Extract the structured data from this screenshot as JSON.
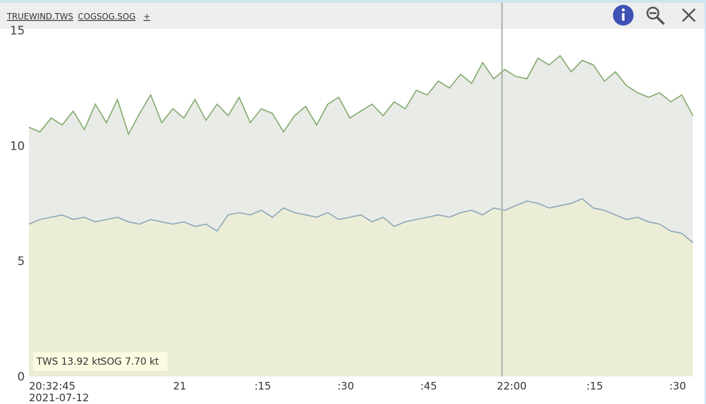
{
  "tabs": [
    "TRUEWIND.TWS",
    "COGSOG.SOG",
    "+"
  ],
  "readout": [
    "TWS 13.92 kt",
    "SOG 7.70 kt"
  ],
  "chart_data": {
    "type": "area",
    "x": [
      "20:32:45",
      "20:34:45",
      "20:36:45",
      "20:38:45",
      "20:40:45",
      "20:42:45",
      "20:44:45",
      "20:46:45",
      "20:48:45",
      "20:50:45",
      "20:52:45",
      "20:54:45",
      "20:56:45",
      "20:58:45",
      "21:00:45",
      "21:02:45",
      "21:04:45",
      "21:06:45",
      "21:08:45",
      "21:10:45",
      "21:12:45",
      "21:14:45",
      "21:16:45",
      "21:18:45",
      "21:20:45",
      "21:22:45",
      "21:24:45",
      "21:26:45",
      "21:28:45",
      "21:30:45",
      "21:32:45",
      "21:34:45",
      "21:36:45",
      "21:38:45",
      "21:40:45",
      "21:42:45",
      "21:44:45",
      "21:46:45",
      "21:48:45",
      "21:50:45",
      "21:52:45",
      "21:54:45",
      "21:56:45",
      "21:58:45",
      "22:00:45",
      "22:02:45",
      "22:04:45",
      "22:06:45",
      "22:08:45",
      "22:10:45",
      "22:12:45",
      "22:14:45",
      "22:16:45",
      "22:18:45",
      "22:20:45",
      "22:22:45",
      "22:24:45",
      "22:26:45",
      "22:28:45",
      "22:30:45",
      "22:32:45"
    ],
    "series": [
      {
        "name": "TRUEWIND.TWS",
        "color": "#7fa86a",
        "fill": "#e9ebe7",
        "values": [
          10.8,
          10.6,
          11.2,
          10.9,
          11.5,
          10.7,
          11.8,
          11.0,
          12.0,
          10.5,
          11.4,
          12.2,
          11.0,
          11.6,
          11.2,
          12.0,
          11.1,
          11.8,
          11.3,
          12.1,
          11.0,
          11.6,
          11.4,
          10.6,
          11.3,
          11.7,
          10.9,
          11.8,
          12.1,
          11.2,
          11.5,
          11.8,
          11.3,
          11.9,
          11.6,
          12.4,
          12.2,
          12.8,
          12.5,
          13.1,
          12.7,
          13.6,
          12.9,
          13.3,
          13.0,
          12.9,
          13.8,
          13.5,
          13.9,
          13.2,
          13.7,
          13.5,
          12.8,
          13.2,
          12.6,
          12.3,
          12.1,
          12.3,
          11.9,
          12.2,
          11.3
        ]
      },
      {
        "name": "COGSOG.SOG",
        "color": "#8aa6b8",
        "fill": "#ecedd6",
        "values": [
          6.6,
          6.8,
          6.9,
          7.0,
          6.8,
          6.9,
          6.7,
          6.8,
          6.9,
          6.7,
          6.6,
          6.8,
          6.7,
          6.6,
          6.7,
          6.5,
          6.6,
          6.3,
          7.0,
          7.1,
          7.0,
          7.2,
          6.9,
          7.3,
          7.1,
          7.0,
          6.9,
          7.1,
          6.8,
          6.9,
          7.0,
          6.7,
          6.9,
          6.5,
          6.7,
          6.8,
          6.9,
          7.0,
          6.9,
          7.1,
          7.2,
          7.0,
          7.3,
          7.2,
          7.4,
          7.6,
          7.5,
          7.3,
          7.4,
          7.5,
          7.7,
          7.3,
          7.2,
          7.0,
          6.8,
          6.9,
          6.7,
          6.6,
          6.3,
          6.2,
          5.8
        ]
      }
    ],
    "xlim": [
      "20:32:45",
      "22:32:45"
    ],
    "xticks": [
      {
        "value": "20:32:45",
        "label": "20:32:45"
      },
      {
        "value": "21:00",
        "label": "21"
      },
      {
        "value": "21:15",
        "label": ":15"
      },
      {
        "value": "21:30",
        "label": ":30"
      },
      {
        "value": "21:45",
        "label": ":45"
      },
      {
        "value": "22:00",
        "label": "22:00"
      },
      {
        "value": "22:15",
        "label": ":15"
      },
      {
        "value": "22:30",
        "label": ":30"
      }
    ],
    "x_date_label": "2021-07-12",
    "cursor_x": "21:58:15",
    "ylim": [
      0,
      15
    ],
    "yticks": [
      0,
      5,
      10,
      15
    ]
  }
}
